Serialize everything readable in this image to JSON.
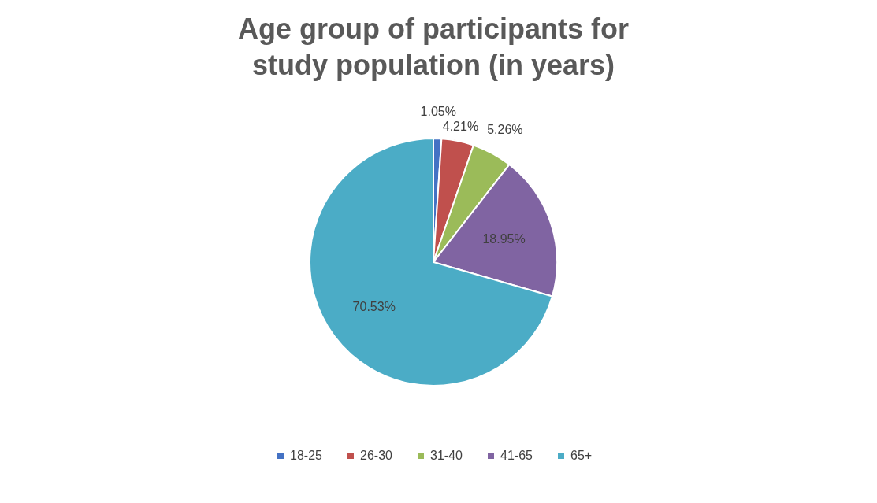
{
  "chart_data": {
    "type": "pie",
    "title": "Age group of participants for study population (in years)",
    "categories": [
      "18-25",
      "26-30",
      "31-40",
      "41-65",
      "65+"
    ],
    "values": [
      1.05,
      4.21,
      5.26,
      18.95,
      70.53
    ],
    "value_labels": [
      "1.05%",
      "4.21%",
      "5.26%",
      "18.95%",
      "70.53%"
    ],
    "colors": [
      "#4472c4",
      "#c0504d",
      "#9bbb59",
      "#8064a2",
      "#4bacc6"
    ],
    "legend": "bottom"
  }
}
